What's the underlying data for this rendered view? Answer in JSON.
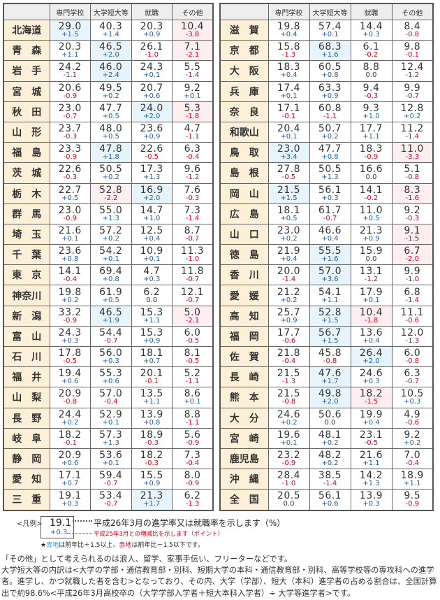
{
  "headers": [
    "",
    "専門学校",
    "大学短大等",
    "就職",
    "その他"
  ],
  "highlight_colors": {
    "blue_cell": "#e8f4fc",
    "red_cell": "#fdeef2",
    "positive_text": "#1d5fb0",
    "negative_text": "#e60012"
  },
  "left_rows": [
    {
      "pref": "北海道",
      "values": [
        "29.0",
        "40.3",
        "20.3",
        "10.4"
      ],
      "changes": [
        "+1.5",
        "+1.4",
        "+0.9",
        "-3.8"
      ]
    },
    {
      "pref": "青　森",
      "values": [
        "20.3",
        "46.5",
        "26.1",
        "7.1"
      ],
      "changes": [
        "+1.1",
        "+2.0",
        "-1.0",
        "-2.1"
      ]
    },
    {
      "pref": "岩　手",
      "values": [
        "24.2",
        "46.0",
        "24.3",
        "5.5"
      ],
      "changes": [
        "-1.1",
        "+2.4",
        "+0.1",
        "-1.4"
      ]
    },
    {
      "pref": "宮　城",
      "values": [
        "20.6",
        "49.5",
        "20.7",
        "9.2"
      ],
      "changes": [
        "-0.9",
        "+0.2",
        "+0.6",
        "+0.1"
      ]
    },
    {
      "pref": "秋　田",
      "values": [
        "23.0",
        "47.7",
        "24.0",
        "5.3"
      ],
      "changes": [
        "-0.7",
        "+0.5",
        "+2.0",
        "-1.8"
      ]
    },
    {
      "pref": "山　形",
      "values": [
        "23.7",
        "48.0",
        "23.6",
        "4.7"
      ],
      "changes": [
        "-0.3",
        "+0.5",
        "+0.9",
        "-1.1"
      ]
    },
    {
      "pref": "福　島",
      "values": [
        "23.3",
        "47.8",
        "22.6",
        "6.3"
      ],
      "changes": [
        "-0.9",
        "+1.8",
        "-0.5",
        "-0.4"
      ]
    },
    {
      "pref": "茨　城",
      "values": [
        "22.6",
        "50.5",
        "17.3",
        "9.6"
      ],
      "changes": [
        "-0.3",
        "+0.2",
        "+1.3",
        "-1.2"
      ]
    },
    {
      "pref": "栃　木",
      "values": [
        "22.7",
        "52.8",
        "16.9",
        "7.6"
      ],
      "changes": [
        "+0.5",
        "-2.2",
        "+2.0",
        "-0.3"
      ]
    },
    {
      "pref": "群　馬",
      "values": [
        "23.0",
        "55.0",
        "14.7",
        "7.3"
      ],
      "changes": [
        "-0.9",
        "+1.3",
        "+1.0",
        "-1.4"
      ]
    },
    {
      "pref": "埼　玉",
      "values": [
        "21.6",
        "57.2",
        "12.5",
        "8.7"
      ],
      "changes": [
        "+0.1",
        "+0.2",
        "+0.4",
        "-0.7"
      ]
    },
    {
      "pref": "千　葉",
      "values": [
        "23.6",
        "54.2",
        "10.9",
        "11.3"
      ],
      "changes": [
        "+0.8",
        "+0.1",
        "+0.1",
        "-1.0"
      ]
    },
    {
      "pref": "東　京",
      "values": [
        "14.1",
        "69.4",
        "4.7",
        "11.8"
      ],
      "changes": [
        "-0.4",
        "+0.8",
        "+0.3",
        "-0.7"
      ]
    },
    {
      "pref": "神奈川",
      "values": [
        "19.8",
        "61.9",
        "6.2",
        "12.1"
      ],
      "changes": [
        "+0.2",
        "+0.5",
        "0.0",
        "-0.7"
      ]
    },
    {
      "pref": "新　潟",
      "values": [
        "33.2",
        "46.5",
        "15.3",
        "5.0"
      ],
      "changes": [
        "-0.9",
        "+1.9",
        "+1.1",
        "-2.1"
      ]
    },
    {
      "pref": "富　山",
      "values": [
        "24.3",
        "54.4",
        "15.3",
        "6.0"
      ],
      "changes": [
        "+0.3",
        "-0.7",
        "+0.9",
        "-0.5"
      ]
    },
    {
      "pref": "石　川",
      "values": [
        "17.8",
        "56.0",
        "18.1",
        "8.1"
      ],
      "changes": [
        "-0.5",
        "+0.3",
        "+0.7",
        "-0.5"
      ]
    },
    {
      "pref": "福　井",
      "values": [
        "19.4",
        "55.3",
        "20.1",
        "5.2"
      ],
      "changes": [
        "+0.6",
        "+0.6",
        "-0.1",
        "-1.1"
      ]
    },
    {
      "pref": "山　梨",
      "values": [
        "20.9",
        "57.0",
        "13.5",
        "8.6"
      ],
      "changes": [
        "-0.8",
        "-0.4",
        "+1.1",
        "+0.1"
      ]
    },
    {
      "pref": "長　野",
      "values": [
        "24.4",
        "52.9",
        "13.9",
        "8.8"
      ],
      "changes": [
        "+0.2",
        "+0.1",
        "+0.8",
        "-1.1"
      ]
    },
    {
      "pref": "岐　阜",
      "values": [
        "18.2",
        "57.3",
        "18.9",
        "5.6"
      ],
      "changes": [
        "-0.1",
        "+1.3",
        "-0.3",
        "-0.9"
      ]
    },
    {
      "pref": "静　岡",
      "values": [
        "20.9",
        "53.6",
        "18.2",
        "7.3"
      ],
      "changes": [
        "+0.6",
        "+0.1",
        "-0.3",
        "-0.4"
      ]
    },
    {
      "pref": "愛　知",
      "values": [
        "17.1",
        "59.4",
        "15.5",
        "8.0"
      ],
      "changes": [
        "+0.7",
        "-0.7",
        "+0.9",
        "-0.9"
      ]
    },
    {
      "pref": "三　重",
      "values": [
        "19.1",
        "53.4",
        "21.3",
        "6.2"
      ],
      "changes": [
        "+0.3",
        "-0.7",
        "+1.7",
        "-1.3"
      ]
    }
  ],
  "right_rows": [
    {
      "pref": "滋　賀",
      "values": [
        "19.8",
        "57.4",
        "14.4",
        "8.4"
      ],
      "changes": [
        "+0.4",
        "+0.1",
        "+0.3",
        "-0.8"
      ]
    },
    {
      "pref": "京　都",
      "values": [
        "15.8",
        "68.3",
        "6.1",
        "9.8"
      ],
      "changes": [
        "-1.3",
        "+1.6",
        "-0.2",
        "-0.1"
      ]
    },
    {
      "pref": "大　阪",
      "values": [
        "18.3",
        "60.5",
        "8.8",
        "12.4"
      ],
      "changes": [
        "+0.4",
        "+0.8",
        "0.0",
        "-1.2"
      ]
    },
    {
      "pref": "兵　庫",
      "values": [
        "17.4",
        "63.3",
        "9.4",
        "9.9"
      ],
      "changes": [
        "+0.1",
        "+0.9",
        "-0.3",
        "-0.7"
      ]
    },
    {
      "pref": "奈　良",
      "values": [
        "17.1",
        "60.8",
        "9.3",
        "12.8"
      ],
      "changes": [
        "-0.1",
        "-1.1",
        "+1.0",
        "+0.2"
      ]
    },
    {
      "pref": "和歌山",
      "values": [
        "20.4",
        "50.7",
        "17.7",
        "11.2"
      ],
      "changes": [
        "+0.1",
        "+0.2",
        "+1.1",
        "-1.4"
      ]
    },
    {
      "pref": "鳥　取",
      "values": [
        "23.0",
        "47.7",
        "18.3",
        "11.0"
      ],
      "changes": [
        "+3.4",
        "+0.8",
        "-0.9",
        "-3.3"
      ]
    },
    {
      "pref": "島　根",
      "values": [
        "27.8",
        "50.5",
        "16.6",
        "5.1"
      ],
      "changes": [
        "-0.5",
        "+1.3",
        "0.0",
        "-0.8"
      ]
    },
    {
      "pref": "岡　山",
      "values": [
        "21.5",
        "56.1",
        "14.1",
        "8.3"
      ],
      "changes": [
        "+1.5",
        "+0.3",
        "-0.2",
        "-1.6"
      ]
    },
    {
      "pref": "広　島",
      "values": [
        "18.1",
        "61.7",
        "11.0",
        "9.2"
      ],
      "changes": [
        "+0.5",
        "-0.7",
        "+0.5",
        "-0.3"
      ]
    },
    {
      "pref": "山　口",
      "values": [
        "23.0",
        "46.6",
        "21.3",
        "9.1"
      ],
      "changes": [
        "+0.2",
        "+0.4",
        "+0.9",
        "-1.5"
      ]
    },
    {
      "pref": "徳　島",
      "values": [
        "21.9",
        "55.5",
        "15.9",
        "6.7"
      ],
      "changes": [
        "+0.4",
        "+1.6",
        "0.0",
        "-2.0"
      ]
    },
    {
      "pref": "香　川",
      "values": [
        "20.0",
        "57.0",
        "13.1",
        "9.9"
      ],
      "changes": [
        "-1.4",
        "+3.6",
        "-1.2",
        "-1.0"
      ]
    },
    {
      "pref": "愛　媛",
      "values": [
        "21.2",
        "54.1",
        "17.9",
        "6.8"
      ],
      "changes": [
        "+0.2",
        "+1.1",
        "+0.1",
        "-1.4"
      ]
    },
    {
      "pref": "高　知",
      "values": [
        "25.7",
        "52.8",
        "10.4",
        "11.1"
      ],
      "changes": [
        "+0.9",
        "+1.5",
        "-1.8",
        "-0.6"
      ]
    },
    {
      "pref": "福　岡",
      "values": [
        "17.7",
        "56.7",
        "13.6",
        "12.0"
      ],
      "changes": [
        "-0.6",
        "+1.5",
        "+0.4",
        "-1.3"
      ]
    },
    {
      "pref": "佐　賀",
      "values": [
        "21.8",
        "45.8",
        "26.4",
        "6.0"
      ],
      "changes": [
        "-0.4",
        "-0.8",
        "+2.0",
        "-0.8"
      ]
    },
    {
      "pref": "長　崎",
      "values": [
        "21.5",
        "47.6",
        "24.6",
        "6.3"
      ],
      "changes": [
        "-1.3",
        "+1.7",
        "+0.3",
        "-0.7"
      ]
    },
    {
      "pref": "熊　本",
      "values": [
        "21.5",
        "49.8",
        "18.2",
        "10.5"
      ],
      "changes": [
        "-0.8",
        "+2.0",
        "-1.5",
        "+0.3"
      ]
    },
    {
      "pref": "大　分",
      "values": [
        "24.6",
        "50.6",
        "19.9",
        "4.9"
      ],
      "changes": [
        "+0.2",
        "0.0",
        "+0.4",
        "-0.6"
      ]
    },
    {
      "pref": "宮　崎",
      "values": [
        "19.6",
        "48.1",
        "23.1",
        "9.2"
      ],
      "changes": [
        "+0.1",
        "+0.2",
        "-0.5",
        "+0.2"
      ]
    },
    {
      "pref": "鹿児島",
      "values": [
        "23.2",
        "48.2",
        "21.6",
        "7.0"
      ],
      "changes": [
        "-0.9",
        "+0.2",
        "+1.1",
        "-0.4"
      ]
    },
    {
      "pref": "沖　縄",
      "values": [
        "28.4",
        "38.5",
        "14.2",
        "18.9"
      ],
      "changes": [
        "-1.0",
        "-1.4",
        "+1.3",
        "+1.1"
      ]
    },
    {
      "pref": "全　国",
      "values": [
        "20.5",
        "56.1",
        "13.9",
        "9.5"
      ],
      "changes": [
        "0.0",
        "+0.6",
        "+0.3",
        "-0.9"
      ]
    }
  ],
  "legend": {
    "label": "<凡例>",
    "sample_value": "19.1",
    "sample_change": "+0.3",
    "value_desc": "平成26年3月の進学率又は就職率を示します（%）",
    "change_desc": "平成25年3月との増減比を示します（ポイント）",
    "note_star": "★",
    "note_blue": "青地",
    "note_mid": "は前年比＋1.5以上、",
    "note_red": "赤地",
    "note_end": "は前年比－1.5以下です。"
  },
  "notes": [
    "「その他」として考えられるのは浪人、留学、家事手伝い、フリーターなどです。",
    "大学短大等の内訳は<大学の学部・通信教育部・別科、短期大学の本科・通信教育部・別科、高等学校等の専攻科への進学者。進学し、かつ就職した者を含む>となっており、その内、大学（学部）、短大（本科）進学者の占める割合は、全国計算出で約98.6%<平成26年3月高校卒の（大学学部入学者＋短大本科入学者）÷ 大学等進学者>です。"
  ]
}
